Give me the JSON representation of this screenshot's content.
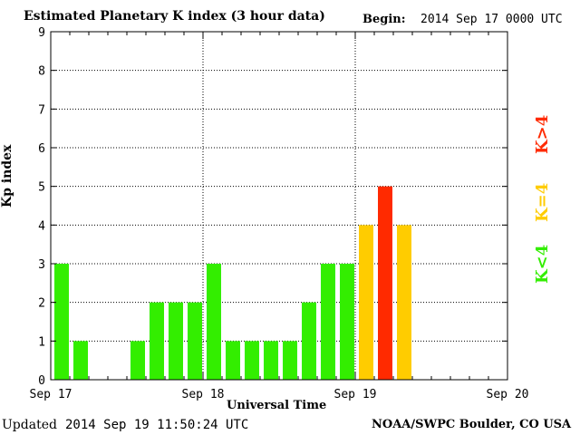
{
  "header": {
    "title": "Estimated Planetary K index (3 hour data)",
    "begin_label": "Begin:",
    "begin_value": "2014 Sep 17 0000 UTC"
  },
  "footer": {
    "updated_label": "Updated",
    "updated_value": "2014 Sep 19 11:50:24 UTC",
    "source": "NOAA/SWPC Boulder, CO USA"
  },
  "legend": {
    "high": "K>4",
    "equal": "K=4",
    "low": "K<4"
  },
  "colors": {
    "low": "#33ee00",
    "equal": "#ffcc00",
    "high": "#ff2a00"
  },
  "chart_data": {
    "type": "bar",
    "title": "Estimated Planetary K index (3 hour data)",
    "xlabel": "Universal Time",
    "ylabel": "Kp index",
    "ylim": [
      0,
      9
    ],
    "yticks": [
      0,
      1,
      2,
      3,
      4,
      5,
      6,
      7,
      8,
      9
    ],
    "x_tick_labels": [
      "Sep 17",
      "Sep 18",
      "Sep 19",
      "Sep 20"
    ],
    "bins_per_day": 8,
    "days": 3,
    "grid": true,
    "values": [
      3,
      1,
      null,
      null,
      1,
      2,
      2,
      2,
      3,
      1,
      1,
      1,
      1,
      2,
      3,
      3,
      4,
      5,
      4
    ]
  }
}
